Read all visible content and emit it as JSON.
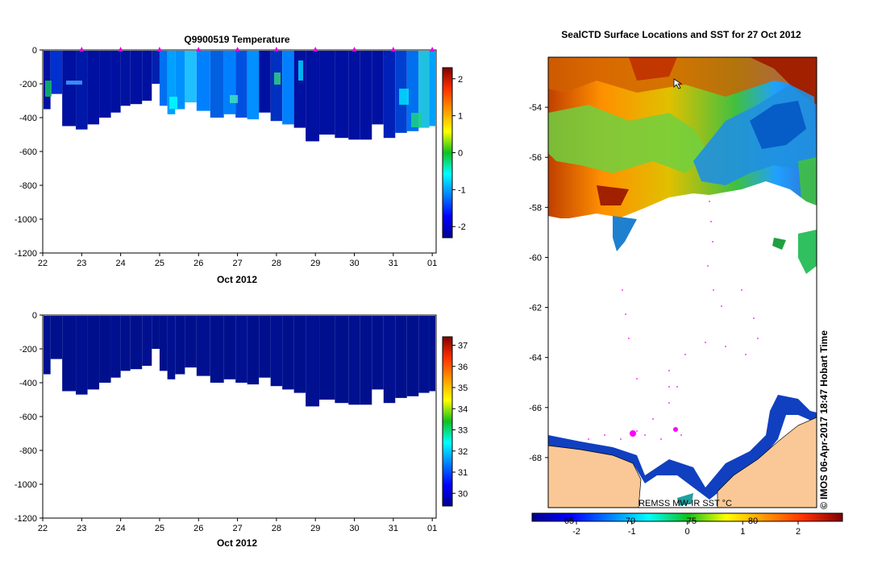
{
  "chart_data": [
    {
      "type": "heatmap",
      "title": "Q9900519  Temperature",
      "xlabel": "Oct 2012",
      "ylabel": "",
      "x_ticks": [
        "22",
        "23",
        "24",
        "25",
        "26",
        "27",
        "28",
        "29",
        "30",
        "31",
        "01"
      ],
      "y_ticks": [
        "0",
        "-200",
        "-400",
        "-600",
        "-800",
        "-1000",
        "-1200"
      ],
      "xlim": [
        22,
        32.1
      ],
      "ylim": [
        -1200,
        0
      ],
      "colorbar_ticks": [
        "2",
        "1",
        "0",
        "-1",
        "-2"
      ],
      "colorbar_range": [
        -2.3,
        2.3
      ],
      "profiles": [
        {
          "day": 22.1,
          "depth": 350
        },
        {
          "day": 22.3,
          "depth": 260
        },
        {
          "day": 22.7,
          "depth": 450
        },
        {
          "day": 23.0,
          "depth": 470
        },
        {
          "day": 23.3,
          "depth": 440
        },
        {
          "day": 23.6,
          "depth": 400
        },
        {
          "day": 23.9,
          "depth": 370
        },
        {
          "day": 24.1,
          "depth": 330
        },
        {
          "day": 24.4,
          "depth": 320
        },
        {
          "day": 24.7,
          "depth": 300
        },
        {
          "day": 24.9,
          "depth": 200
        },
        {
          "day": 25.1,
          "depth": 330
        },
        {
          "day": 25.3,
          "depth": 380
        },
        {
          "day": 25.5,
          "depth": 350
        },
        {
          "day": 25.8,
          "depth": 310
        },
        {
          "day": 26.1,
          "depth": 360
        },
        {
          "day": 26.5,
          "depth": 400
        },
        {
          "day": 26.8,
          "depth": 380
        },
        {
          "day": 27.1,
          "depth": 400
        },
        {
          "day": 27.4,
          "depth": 410
        },
        {
          "day": 27.7,
          "depth": 370
        },
        {
          "day": 28.0,
          "depth": 420
        },
        {
          "day": 28.3,
          "depth": 440
        },
        {
          "day": 28.6,
          "depth": 460
        },
        {
          "day": 28.9,
          "depth": 540
        },
        {
          "day": 29.3,
          "depth": 500
        },
        {
          "day": 29.7,
          "depth": 520
        },
        {
          "day": 30.0,
          "depth": 530
        },
        {
          "day": 30.3,
          "depth": 530
        },
        {
          "day": 30.6,
          "depth": 440
        },
        {
          "day": 30.9,
          "depth": 520
        },
        {
          "day": 31.2,
          "depth": 490
        },
        {
          "day": 31.5,
          "depth": 480
        },
        {
          "day": 31.8,
          "depth": 460
        },
        {
          "day": 32.05,
          "depth": 450
        }
      ],
      "profile_markers": [
        23,
        24,
        25,
        26,
        27,
        28,
        29,
        30,
        31,
        32
      ]
    },
    {
      "type": "heatmap",
      "title": "",
      "xlabel": "Oct 2012",
      "ylabel": "",
      "x_ticks": [
        "22",
        "23",
        "24",
        "25",
        "26",
        "27",
        "28",
        "29",
        "30",
        "31",
        "01"
      ],
      "y_ticks": [
        "0",
        "-200",
        "-400",
        "-600",
        "-800",
        "-1000",
        "-1200"
      ],
      "xlim": [
        22,
        32.1
      ],
      "ylim": [
        -1200,
        0
      ],
      "colorbar_ticks": [
        "37",
        "36",
        "35",
        "34",
        "33",
        "32",
        "31",
        "30"
      ],
      "colorbar_range": [
        29.4,
        37.4
      ]
    },
    {
      "type": "heatmap",
      "title": "SealCTD Surface Locations and SST for 27 Oct 2012",
      "ylabel": "",
      "y_ticks": [
        "-54",
        "-56",
        "-58",
        "-60",
        "-62",
        "-64",
        "-66",
        "-68"
      ],
      "ylim": [
        -70,
        -52
      ],
      "colorbar_label": "REMSS MW-IR SST °C",
      "colorbar_ticks": [
        "-2",
        "-1",
        "0",
        "1",
        "2"
      ],
      "colorbar_range": [
        -2.8,
        2.8
      ],
      "colorbar_overlay_ticks": [
        "65",
        "70",
        "75",
        "80"
      ],
      "side_label": "© IMOS 06-Apr-2017 18:47 Hobart Time"
    }
  ]
}
